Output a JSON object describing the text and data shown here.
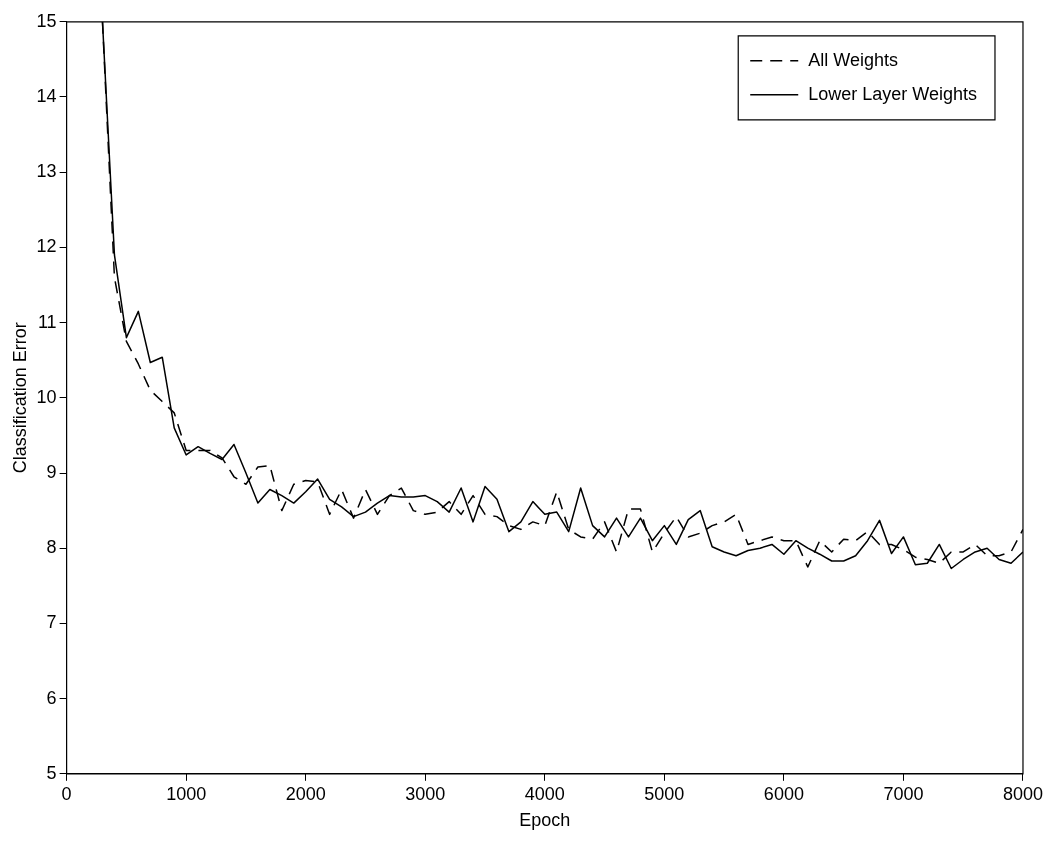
{
  "chart_data": {
    "type": "line",
    "xlabel": "Epoch",
    "ylabel": "Classification Error",
    "x": [
      300,
      400,
      500,
      600,
      700,
      800,
      900,
      1000,
      1100,
      1200,
      1300,
      1400,
      1500,
      1600,
      1700,
      1800,
      1900,
      2000,
      2100,
      2200,
      2300,
      2400,
      2500,
      2600,
      2700,
      2800,
      2900,
      3000,
      3100,
      3200,
      3300,
      3400,
      3500,
      3600,
      3700,
      3800,
      3900,
      4000,
      4100,
      4200,
      4300,
      4400,
      4500,
      4600,
      4700,
      4800,
      4900,
      5000,
      5100,
      5200,
      5300,
      5400,
      5500,
      5600,
      5700,
      5800,
      5900,
      6000,
      6100,
      6200,
      6300,
      6400,
      6500,
      6600,
      6700,
      6800,
      6900,
      7000,
      7100,
      7200,
      7300,
      7400,
      7500,
      7600,
      7700,
      7800,
      7900,
      8000
    ],
    "series": [
      {
        "name": "All Weights",
        "color": "#000000",
        "line_style": "dashed",
        "values": [
          15,
          11.6,
          10.75,
          10.45,
          10.1,
          9.95,
          9.8,
          9.3,
          9.3,
          9.3,
          9.2,
          8.95,
          8.85,
          9.08,
          9.1,
          8.5,
          8.85,
          8.9,
          8.88,
          8.45,
          8.78,
          8.4,
          8.78,
          8.45,
          8.7,
          8.8,
          8.5,
          8.45,
          8.48,
          8.62,
          8.45,
          8.7,
          8.45,
          8.42,
          8.3,
          8.25,
          8.35,
          8.3,
          8.75,
          8.25,
          8.15,
          8.12,
          8.35,
          7.95,
          8.52,
          8.52,
          7.95,
          8.2,
          8.42,
          8.15,
          8.2,
          8.3,
          8.35,
          8.45,
          8.05,
          8.1,
          8.15,
          8.1,
          8.1,
          7.75,
          8.1,
          7.95,
          8.12,
          8.1,
          8.22,
          8.05,
          8.05,
          7.98,
          7.88,
          7.85,
          7.8,
          7.95,
          7.95,
          8.05,
          7.9,
          7.9,
          7.95,
          8.25
        ]
      },
      {
        "name": "Lower Layer Weights",
        "color": "#000000",
        "line_style": "solid",
        "values": [
          15,
          11.9,
          10.8,
          11.15,
          10.47,
          10.54,
          9.6,
          9.24,
          9.35,
          9.26,
          9.18,
          9.38,
          9.0,
          8.6,
          8.78,
          8.7,
          8.6,
          8.75,
          8.92,
          8.65,
          8.55,
          8.42,
          8.48,
          8.6,
          8.7,
          8.68,
          8.68,
          8.7,
          8.62,
          8.48,
          8.8,
          8.35,
          8.82,
          8.65,
          8.22,
          8.35,
          8.62,
          8.45,
          8.48,
          8.22,
          8.8,
          8.3,
          8.15,
          8.4,
          8.15,
          8.4,
          8.1,
          8.3,
          8.05,
          8.38,
          8.5,
          8.02,
          7.95,
          7.9,
          7.97,
          8.0,
          8.05,
          7.92,
          8.1,
          8.0,
          7.92,
          7.83,
          7.83,
          7.9,
          8.1,
          8.37,
          7.93,
          8.15,
          7.78,
          7.8,
          8.05,
          7.73,
          7.85,
          7.95,
          8.0,
          7.85,
          7.8,
          7.95
        ]
      }
    ],
    "xlim": [
      0,
      8000
    ],
    "xticks": [
      0,
      1000,
      2000,
      3000,
      4000,
      5000,
      6000,
      7000,
      8000
    ],
    "ylim": [
      5,
      15
    ],
    "yticks": [
      5,
      6,
      7,
      8,
      9,
      10,
      11,
      12,
      13,
      14,
      15
    ],
    "legend": "top right",
    "grid": false,
    "marker": "none"
  }
}
